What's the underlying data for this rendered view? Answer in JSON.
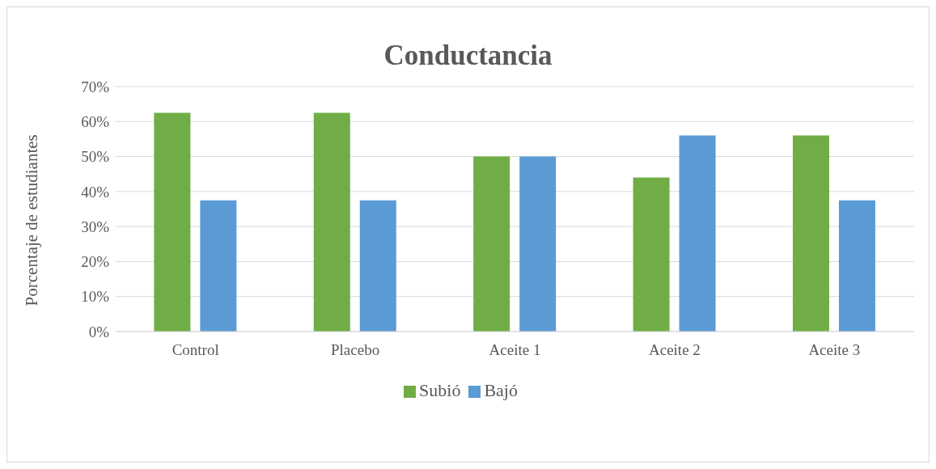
{
  "chart_data": {
    "type": "bar",
    "title": "Conductancia",
    "ylabel": "Porcentaje de estudiantes",
    "categories": [
      "Control",
      "Placebo",
      "Aceite 1",
      "Aceite 2",
      "Aceite 3"
    ],
    "series": [
      {
        "name": "Subió",
        "color": "#70ad47",
        "values": [
          62.5,
          62.5,
          50,
          44,
          56
        ]
      },
      {
        "name": "Bajó",
        "color": "#5b9bd5",
        "values": [
          37.5,
          37.5,
          50,
          56,
          37.5
        ]
      }
    ],
    "ylim": [
      0,
      70
    ],
    "yticks": [
      {
        "value": 0,
        "label": "0%"
      },
      {
        "value": 10,
        "label": "10%"
      },
      {
        "value": 20,
        "label": "20%"
      },
      {
        "value": 30,
        "label": "30%"
      },
      {
        "value": 40,
        "label": "40%"
      },
      {
        "value": 50,
        "label": "50%"
      },
      {
        "value": 60,
        "label": "60%"
      },
      {
        "value": 70,
        "label": "70%"
      }
    ],
    "grid": "y",
    "legend": "bottom"
  }
}
